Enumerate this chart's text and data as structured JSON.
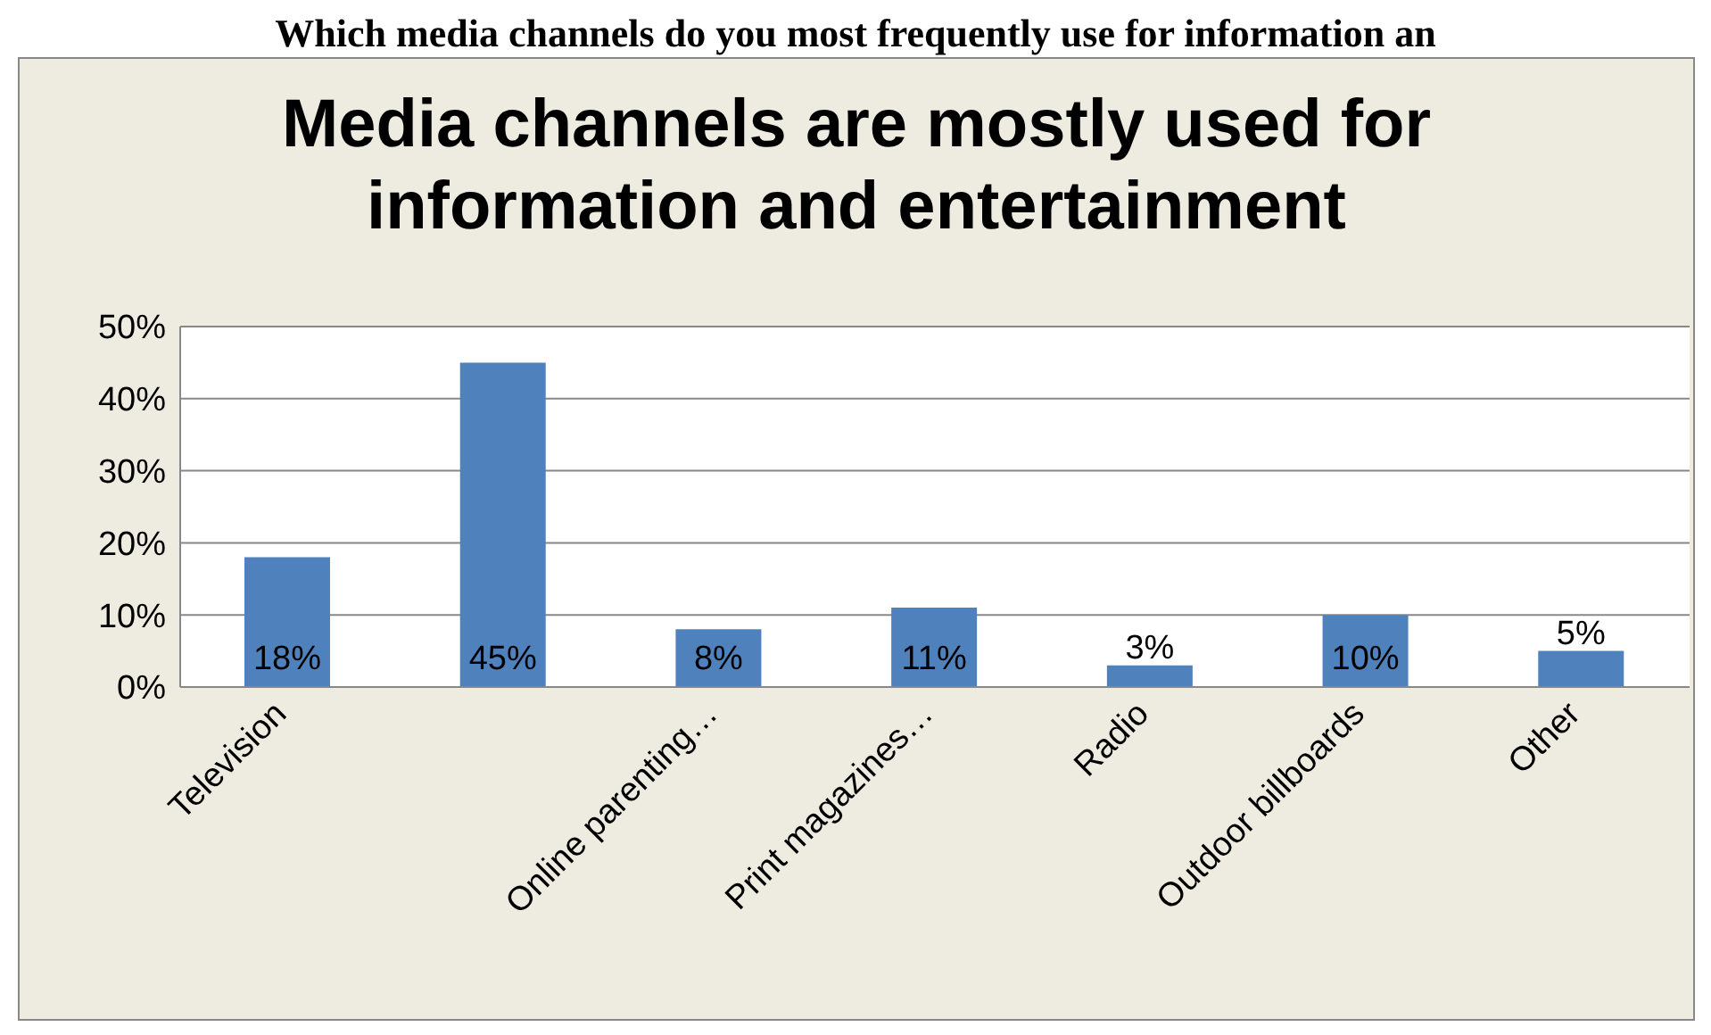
{
  "chart_data": {
    "type": "bar",
    "title": "Media channels are mostly used for information and entertainment",
    "annotations": [
      "Which media channels do you most frequently use for information an"
    ],
    "categories": [
      "Television",
      null,
      "Online parenting…",
      "Print magazines…",
      "Radio",
      "Outdoor billboards",
      "Other"
    ],
    "values": [
      18,
      45,
      8,
      11,
      3,
      10,
      5
    ],
    "value_labels": [
      "18%",
      "45%",
      "8%",
      "11%",
      "3%",
      "10%",
      "5%"
    ],
    "color": "#4f81bd",
    "ylim": [
      0,
      50
    ],
    "yticks": [
      {
        "value": 0,
        "label": "0%"
      },
      {
        "value": 10,
        "label": "10%"
      },
      {
        "value": 20,
        "label": "20%"
      },
      {
        "value": 30,
        "label": "30%"
      },
      {
        "value": 40,
        "label": "40%"
      },
      {
        "value": 50,
        "label": "50%"
      }
    ],
    "grid": "y",
    "legend": false
  }
}
